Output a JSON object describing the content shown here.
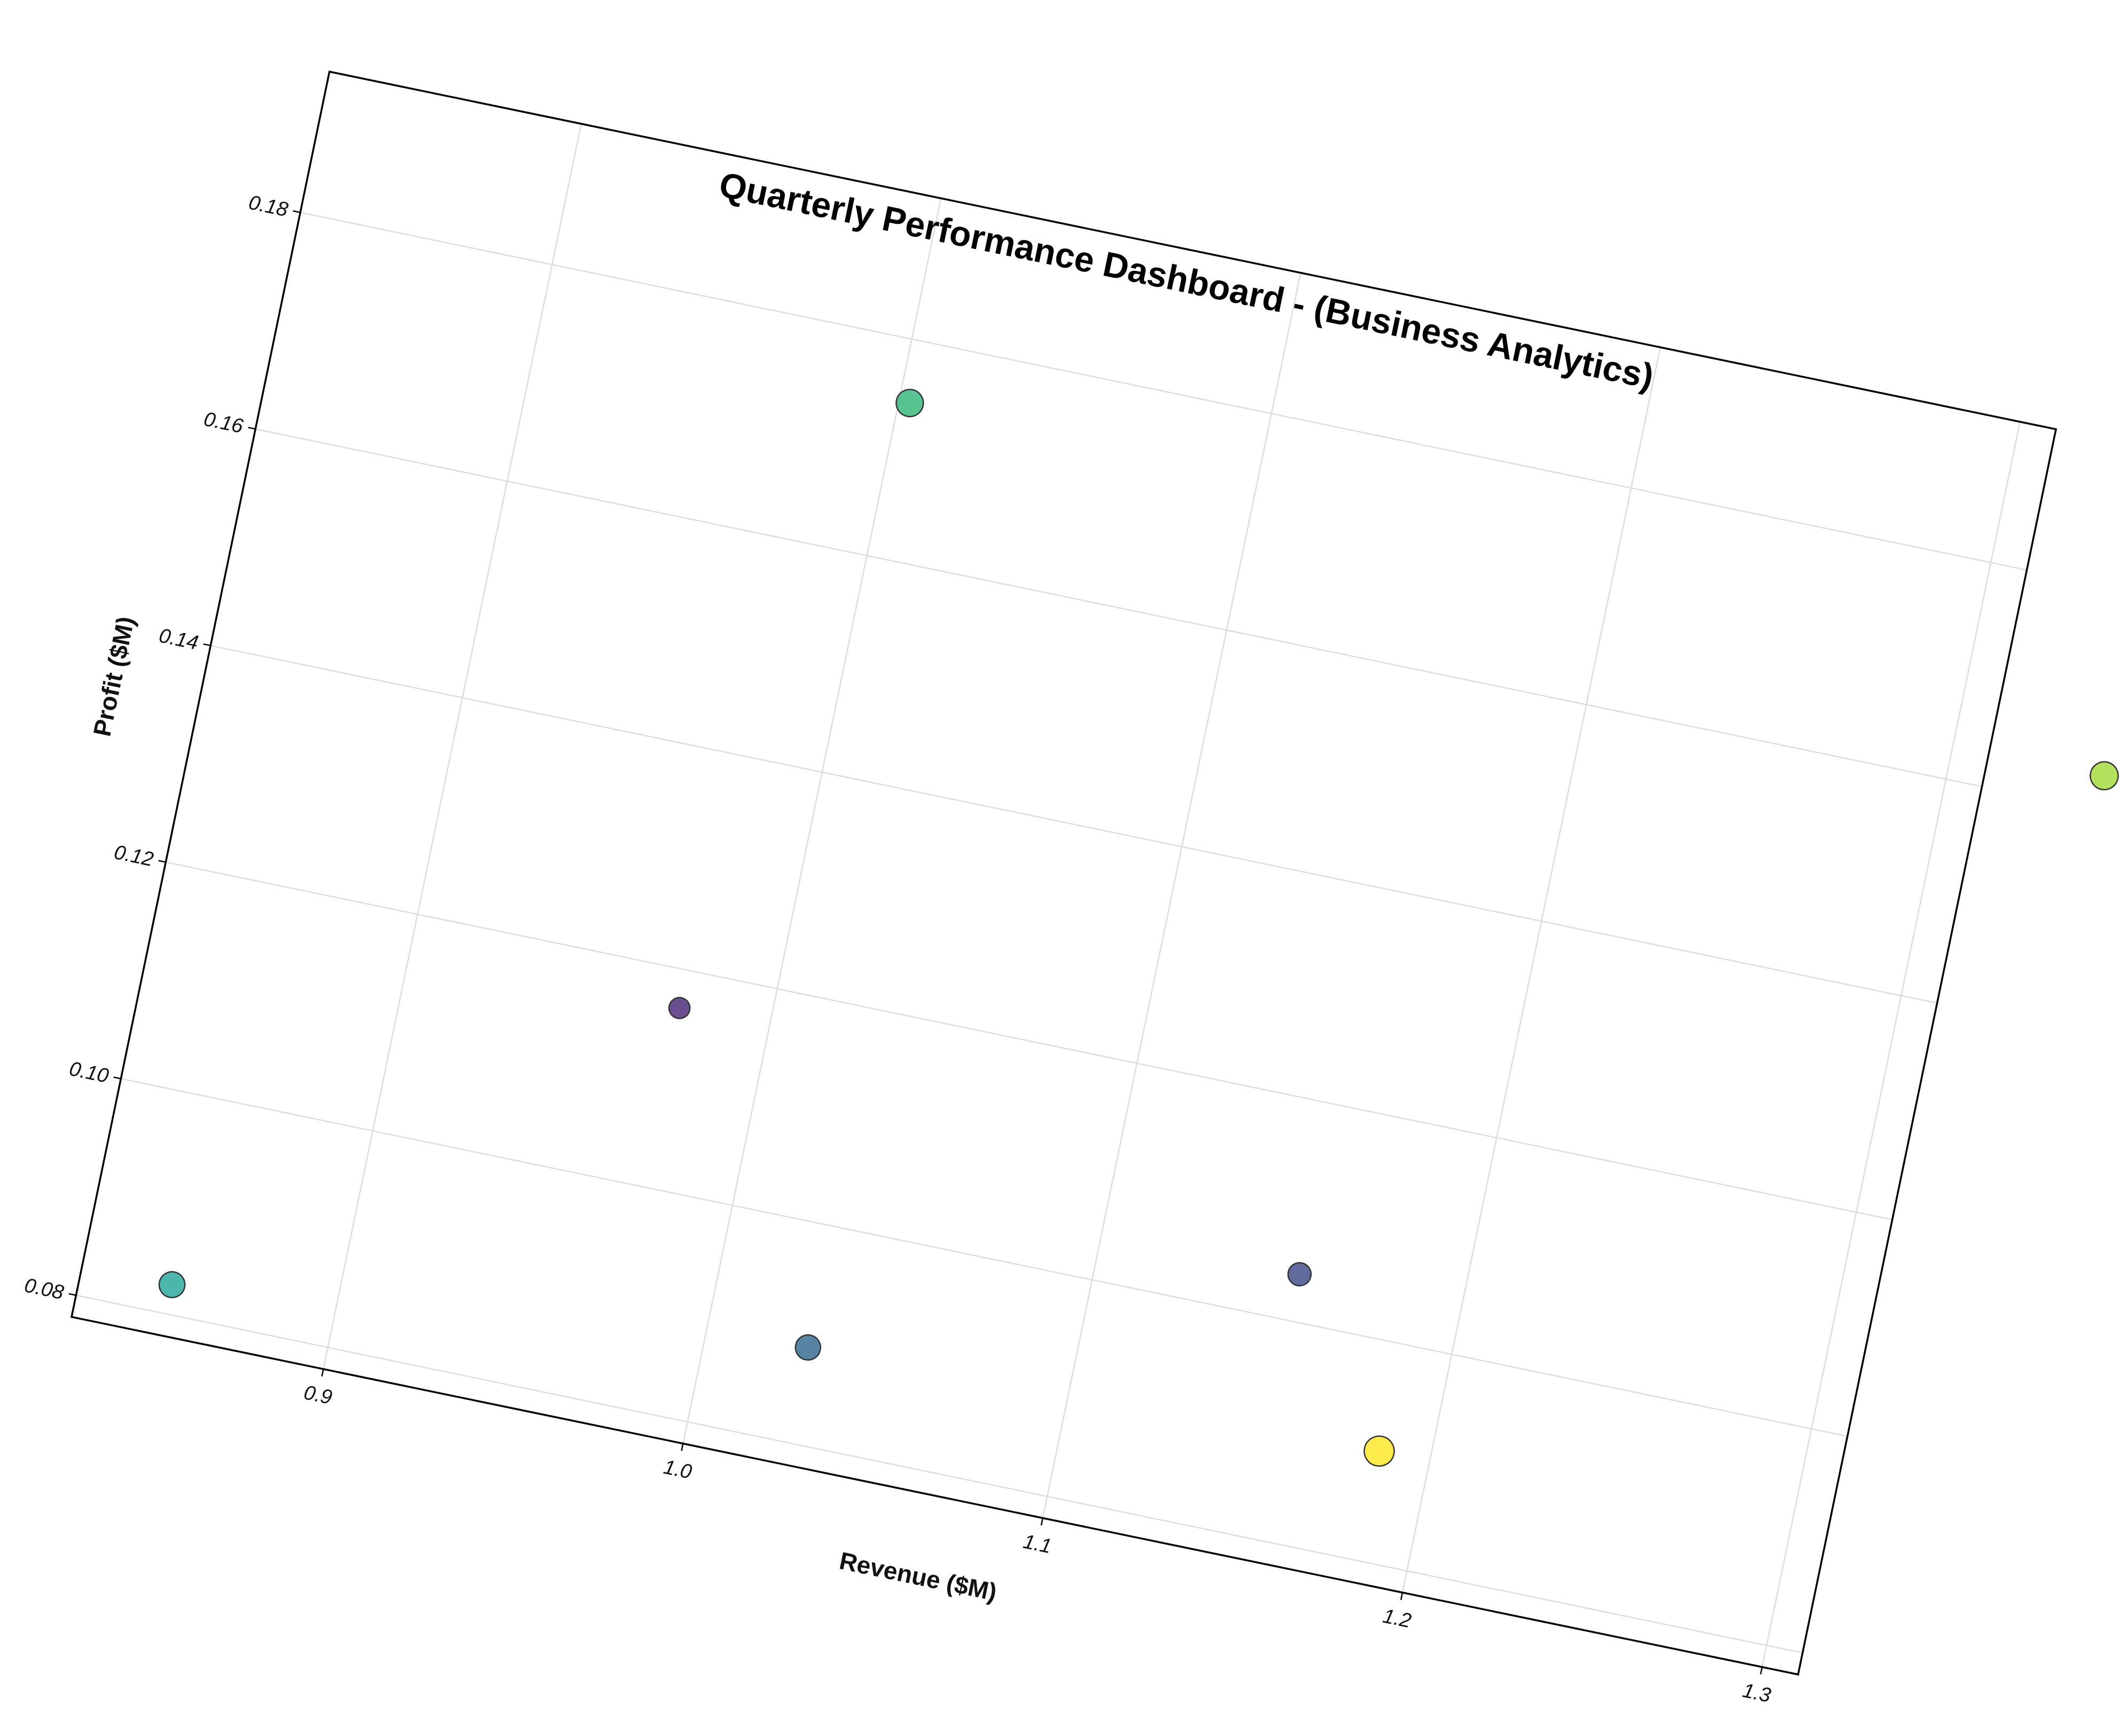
{
  "chart_data": {
    "type": "scatter",
    "title": "Quarterly Performance Dashboard - (Business Analytics)",
    "xlabel": "Revenue ($M)",
    "ylabel": "Profit ($M)",
    "xlim": [
      0.83,
      1.31
    ],
    "ylim": [
      0.078,
      0.193
    ],
    "xticks": [
      {
        "value": 0.9,
        "label": "0.9"
      },
      {
        "value": 1.0,
        "label": "1.0"
      },
      {
        "value": 1.1,
        "label": "1.1"
      },
      {
        "value": 1.2,
        "label": "1.2"
      },
      {
        "value": 1.3,
        "label": "1.3"
      }
    ],
    "yticks": [
      {
        "value": 0.08,
        "label": "0.08"
      },
      {
        "value": 0.1,
        "label": "0.10"
      },
      {
        "value": 0.12,
        "label": "0.12"
      },
      {
        "value": 0.14,
        "label": "0.14"
      },
      {
        "value": 0.16,
        "label": "0.16"
      },
      {
        "value": 0.18,
        "label": "0.18"
      }
    ],
    "grid": true,
    "colormap": "viridis",
    "points": [
      {
        "x": 0.975,
        "y": 0.1165,
        "size": 0.35,
        "color": "#482878"
      },
      {
        "x": 1.155,
        "y": 0.1043,
        "size": 0.5,
        "color": "#3e4a89"
      },
      {
        "x": 1.028,
        "y": 0.0888,
        "size": 0.65,
        "color": "#31688e"
      },
      {
        "x": 0.855,
        "y": 0.0827,
        "size": 0.7,
        "color": "#26a69a"
      },
      {
        "x": 1.003,
        "y": 0.1743,
        "size": 0.8,
        "color": "#35b779"
      },
      {
        "x": 1.342,
        "y": 0.1632,
        "size": 0.85,
        "color": "#a0da39"
      },
      {
        "x": 1.186,
        "y": 0.0901,
        "size": 1.0,
        "color": "#fde725"
      }
    ]
  }
}
